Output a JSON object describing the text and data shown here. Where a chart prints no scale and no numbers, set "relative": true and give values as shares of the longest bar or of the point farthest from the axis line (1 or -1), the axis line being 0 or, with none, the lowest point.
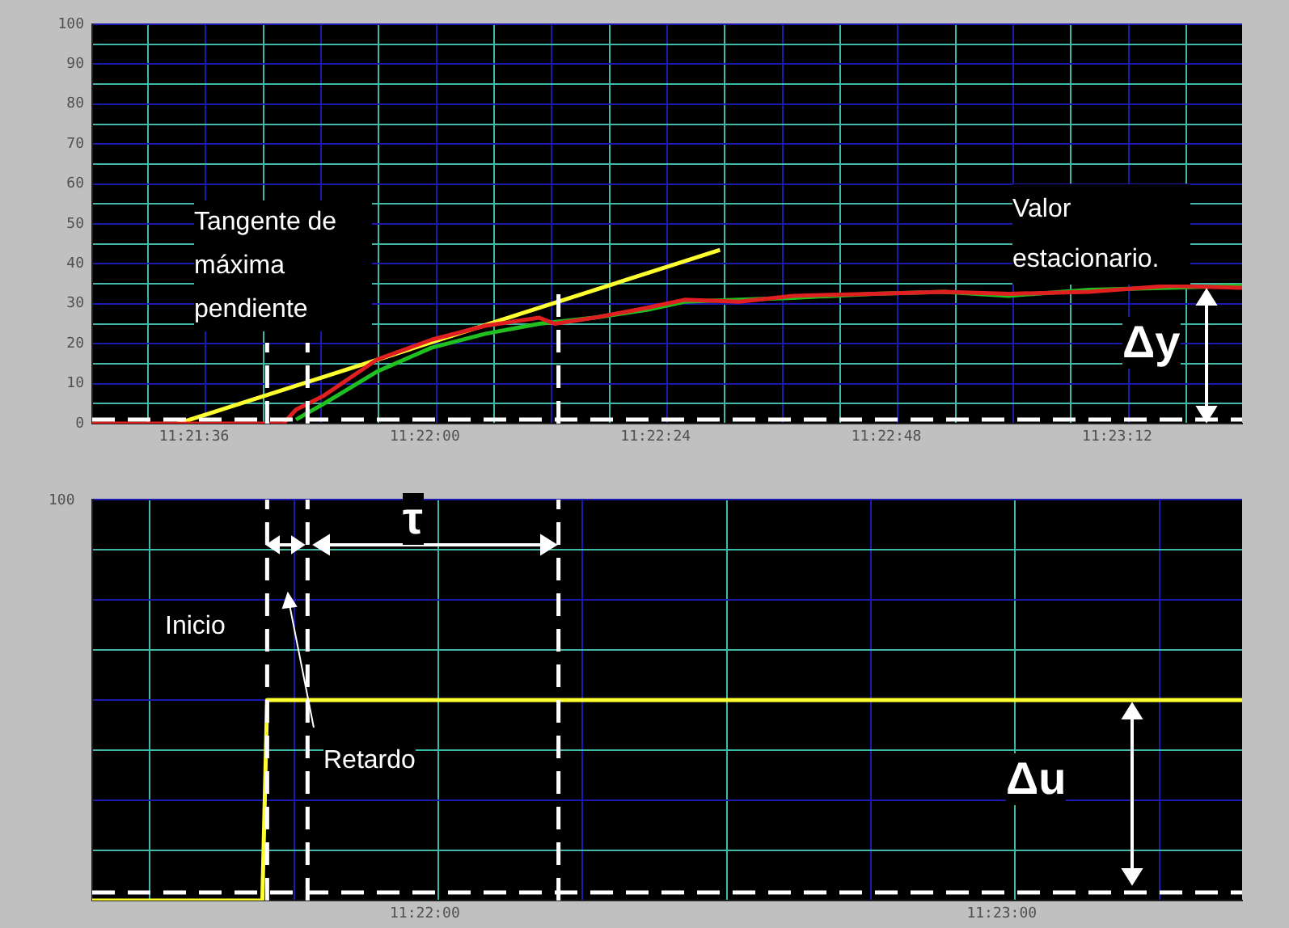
{
  "chart_data": [
    {
      "type": "line",
      "xlim": [
        11.357056,
        11.390278
      ],
      "ylim": [
        0,
        100
      ],
      "xticks": [
        {
          "value": 11.36,
          "label": "11:21:36"
        },
        {
          "value": 11.366667,
          "label": "11:22:00"
        },
        {
          "value": 11.373333,
          "label": "11:22:24"
        },
        {
          "value": 11.38,
          "label": "11:22:48"
        },
        {
          "value": 11.386667,
          "label": "11:23:12"
        },
        {
          "value": 11.358667,
          "label": null
        },
        {
          "value": 11.360333,
          "label": null
        },
        {
          "value": 11.362,
          "label": null
        },
        {
          "value": 11.363667,
          "label": null
        },
        {
          "value": 11.365333,
          "label": null
        },
        {
          "value": 11.367,
          "label": null
        },
        {
          "value": 11.368667,
          "label": null
        },
        {
          "value": 11.370333,
          "label": null
        },
        {
          "value": 11.372,
          "label": null
        },
        {
          "value": 11.373667,
          "label": null
        },
        {
          "value": 11.375333,
          "label": null
        },
        {
          "value": 11.377,
          "label": null
        },
        {
          "value": 11.378667,
          "label": null
        },
        {
          "value": 11.380333,
          "label": null
        },
        {
          "value": 11.382,
          "label": null
        },
        {
          "value": 11.383667,
          "label": null
        },
        {
          "value": 11.385333,
          "label": null
        },
        {
          "value": 11.387,
          "label": null
        },
        {
          "value": 11.388667,
          "label": null
        }
      ],
      "yticks": [
        0,
        {
          "value": 5,
          "label": null
        },
        10,
        {
          "value": 15,
          "label": null
        },
        20,
        {
          "value": 25,
          "label": null
        },
        30,
        {
          "value": 35,
          "label": null
        },
        40,
        {
          "value": 45,
          "label": null
        },
        50,
        {
          "value": 55,
          "label": null
        },
        60,
        {
          "value": 65,
          "label": null
        },
        70,
        {
          "value": 75,
          "label": null
        },
        80,
        {
          "value": 85,
          "label": null
        },
        90,
        {
          "value": 95,
          "label": null
        },
        100
      ],
      "grid": true,
      "legend": false,
      "marker": "none",
      "line_style": "solid",
      "series": [
        {
          "color": "#e02020",
          "x": [
            11.357056,
            11.362583,
            11.362944,
            11.36375,
            11.365278,
            11.366861,
            11.368417,
            11.369972,
            11.370417,
            11.371556,
            11.373083,
            11.374167,
            11.37575,
            11.377306,
            11.379639,
            11.381667,
            11.383528,
            11.385861,
            11.388194,
            11.390278
          ],
          "values": [
            0,
            0,
            3.5,
            7,
            16,
            21,
            24.5,
            26.5,
            25,
            26.5,
            29,
            31,
            30.5,
            32,
            32.5,
            33,
            32.5,
            33,
            34.5,
            34
          ]
        },
        {
          "color": "#20c020",
          "x": [
            11.362944,
            11.36375,
            11.365278,
            11.366861,
            11.368417,
            11.369972,
            11.371556,
            11.373083,
            11.374167,
            11.37575,
            11.377306,
            11.379639,
            11.381667,
            11.383528,
            11.385861,
            11.388194,
            11.390278
          ],
          "values": [
            1,
            5,
            13,
            19,
            22.5,
            25,
            26.5,
            28.5,
            30.5,
            31,
            31.5,
            32.5,
            33,
            32,
            33.5,
            34,
            34.5
          ]
        },
        {
          "type": "line",
          "color": "#ffff30",
          "x": [
            11.359528,
            11.375194
          ],
          "values": [
            0,
            43.5
          ]
        }
      ],
      "ref_lines": [
        {
          "axis": "y",
          "value": 1,
          "color": "#ffffff",
          "line_style": "dashed"
        },
        {
          "axis": "x",
          "value": 11.362111,
          "color": "#ffffff",
          "line_style": "dashed"
        },
        {
          "axis": "x",
          "value": 11.363278,
          "color": "#ffffff",
          "line_style": "dashed"
        },
        {
          "axis": "x",
          "value": 11.370528,
          "color": "#ffffff",
          "line_style": "dashed"
        }
      ],
      "annotations": [
        "Tangente de máxima pendiente",
        "Valor estacionario.",
        "Δy"
      ]
    },
    {
      "type": "line",
      "xlim": [
        11.357056,
        11.390278
      ],
      "xticks": [
        {
          "value": 11.366667,
          "label": "11:22:00"
        },
        {
          "value": 11.383333,
          "label": "11:23:00"
        },
        {
          "value": 11.358722,
          "label": null
        },
        {
          "value": 11.362889,
          "label": null
        },
        {
          "value": 11.367056,
          "label": null
        },
        {
          "value": 11.371222,
          "label": null
        },
        {
          "value": 11.375389,
          "label": null
        },
        {
          "value": 11.379556,
          "label": null
        },
        {
          "value": 11.383722,
          "label": null
        },
        {
          "value": 11.387889,
          "label": null
        }
      ],
      "relative": true,
      "grid": true,
      "legend": false,
      "marker": "none",
      "line_style": "solid",
      "series": [
        {
          "color": "#ffff30",
          "x": [
            11.357056,
            11.361972,
            11.362111,
            11.390278
          ],
          "values": [
            0,
            0,
            1,
            1
          ]
        }
      ],
      "ref_lines": [
        {
          "axis": "y",
          "value": 0.04,
          "color": "#ffffff",
          "line_style": "dashed"
        },
        {
          "axis": "x",
          "value": 11.362111,
          "color": "#ffffff",
          "line_style": "dashed"
        },
        {
          "axis": "x",
          "value": 11.363278,
          "color": "#ffffff",
          "line_style": "dashed"
        },
        {
          "axis": "x",
          "value": 11.370528,
          "color": "#ffffff",
          "line_style": "dashed"
        }
      ],
      "annotations": [
        "τ",
        "Inicio",
        "Retardo",
        "Δu",
        "100"
      ]
    }
  ]
}
